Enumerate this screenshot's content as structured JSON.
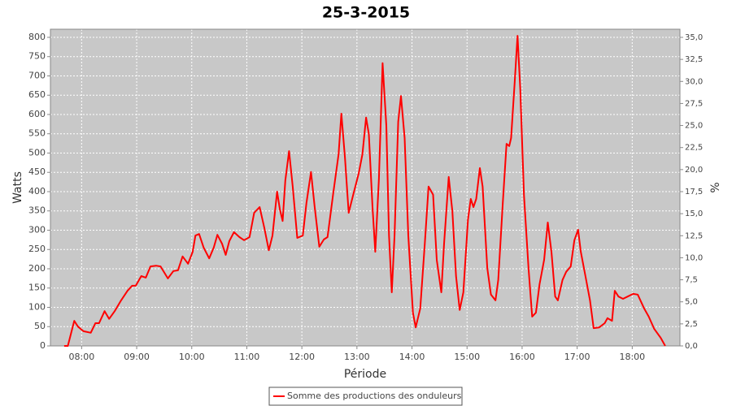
{
  "chart_data": {
    "type": "line",
    "title": "25-3-2015",
    "xlabel": "Période",
    "ylabel": "Watts",
    "y2label": "%",
    "grid": true,
    "legend": "bottom",
    "x": [
      "07:41",
      "07:45",
      "07:52",
      "07:56",
      "08:02",
      "08:10",
      "08:15",
      "08:19",
      "08:25",
      "08:30",
      "08:36",
      "08:43",
      "08:50",
      "08:55",
      "08:59",
      "09:05",
      "09:10",
      "09:15",
      "09:21",
      "09:26",
      "09:34",
      "09:40",
      "09:45",
      "09:50",
      "09:56",
      "10:01",
      "10:04",
      "10:08",
      "10:13",
      "10:19",
      "10:24",
      "10:28",
      "10:33",
      "10:37",
      "10:41",
      "10:46",
      "10:52",
      "10:57",
      "11:03",
      "11:08",
      "11:14",
      "11:19",
      "11:24",
      "11:28",
      "11:33",
      "11:36",
      "11:39",
      "11:42",
      "11:46",
      "11:50",
      "11:55",
      "12:01",
      "12:05",
      "12:10",
      "12:14",
      "12:19",
      "12:24",
      "12:28",
      "12:34",
      "12:40",
      "12:43",
      "12:47",
      "12:51",
      "12:56",
      "13:02",
      "13:06",
      "13:10",
      "13:13",
      "13:17",
      "13:20",
      "13:24",
      "13:28",
      "13:32",
      "13:35",
      "13:38",
      "13:41",
      "13:45",
      "13:48",
      "13:52",
      "13:56",
      "14:01",
      "14:04",
      "14:09",
      "14:14",
      "14:18",
      "14:23",
      "14:27",
      "14:32",
      "14:35",
      "14:40",
      "14:44",
      "14:48",
      "14:52",
      "14:56",
      "15:01",
      "15:04",
      "15:07",
      "15:10",
      "15:14",
      "15:17",
      "15:22",
      "15:26",
      "15:31",
      "15:34",
      "15:39",
      "15:43",
      "15:46",
      "15:48",
      "15:52",
      "15:55",
      "15:58",
      "16:02",
      "16:07",
      "16:11",
      "16:15",
      "16:19",
      "16:24",
      "16:28",
      "16:32",
      "16:36",
      "16:39",
      "16:44",
      "16:48",
      "16:53",
      "16:57",
      "17:01",
      "17:04",
      "17:09",
      "17:14",
      "17:18",
      "17:24",
      "17:30",
      "17:33",
      "17:38",
      "17:41",
      "17:45",
      "17:50",
      "17:55",
      "18:01",
      "18:06",
      "18:13",
      "18:18",
      "18:24",
      "18:31",
      "18:36"
    ],
    "series": [
      {
        "name": "Somme des productions des onduleurs",
        "color": "#ff0000",
        "values": [
          0,
          0,
          65,
          50,
          38,
          34,
          59,
          59,
          90,
          70,
          90,
          118,
          143,
          156,
          156,
          181,
          177,
          206,
          208,
          206,
          175,
          194,
          196,
          232,
          213,
          244,
          286,
          290,
          255,
          227,
          255,
          288,
          265,
          236,
          272,
          295,
          282,
          274,
          282,
          345,
          360,
          307,
          248,
          286,
          400,
          354,
          324,
          429,
          505,
          413,
          280,
          286,
          371,
          451,
          360,
          257,
          276,
          282,
          392,
          497,
          602,
          486,
          345,
          392,
          448,
          497,
          592,
          549,
          360,
          244,
          434,
          733,
          571,
          286,
          139,
          286,
          581,
          648,
          539,
          286,
          86,
          48,
          97,
          265,
          413,
          392,
          223,
          139,
          265,
          438,
          349,
          181,
          93,
          139,
          328,
          381,
          360,
          381,
          461,
          413,
          202,
          133,
          118,
          171,
          371,
          524,
          518,
          539,
          686,
          804,
          665,
          392,
          202,
          76,
          86,
          160,
          223,
          320,
          244,
          128,
          118,
          171,
          192,
          206,
          274,
          301,
          244,
          181,
          118,
          46,
          48,
          59,
          72,
          65,
          143,
          128,
          122,
          128,
          135,
          133,
          97,
          76,
          44,
          21,
          0
        ]
      }
    ],
    "xlim": [
      "07:26",
      "18:52"
    ],
    "xticks": [
      "08:00",
      "09:00",
      "10:00",
      "11:00",
      "12:00",
      "13:00",
      "14:00",
      "15:00",
      "16:00",
      "17:00",
      "18:00"
    ],
    "ylim": [
      0,
      821
    ],
    "yticks": [
      0,
      50,
      100,
      150,
      200,
      250,
      300,
      350,
      400,
      450,
      500,
      550,
      600,
      650,
      700,
      750,
      800
    ],
    "y2lim": [
      0,
      35.92
    ],
    "y2ticks": [
      {
        "value": 0,
        "label": "0,0"
      },
      {
        "value": 2.5,
        "label": "2,5"
      },
      {
        "value": 5,
        "label": "5,0"
      },
      {
        "value": 7.5,
        "label": "7,5"
      },
      {
        "value": 10,
        "label": "10,0"
      },
      {
        "value": 12.5,
        "label": "12,5"
      },
      {
        "value": 15,
        "label": "15,0"
      },
      {
        "value": 17.5,
        "label": "17,5"
      },
      {
        "value": 20,
        "label": "20,0"
      },
      {
        "value": 22.5,
        "label": "22,5"
      },
      {
        "value": 25,
        "label": "25,0"
      },
      {
        "value": 27.5,
        "label": "27,5"
      },
      {
        "value": 30,
        "label": "30,0"
      },
      {
        "value": 32.5,
        "label": "32,5"
      },
      {
        "value": 35,
        "label": "35,0"
      }
    ]
  }
}
